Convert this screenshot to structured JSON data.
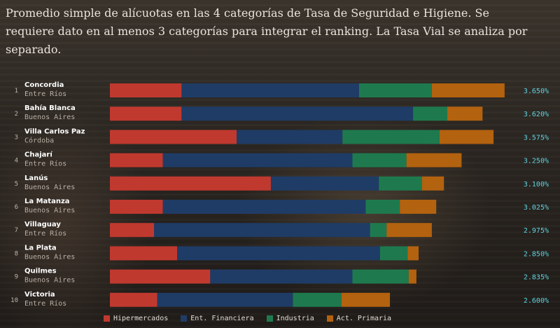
{
  "intro": "Promedio simple de alícuotas en las 4 categorías de Tasa de Seguridad e Higiene. Se requiere dato en al menos 3 categorías para integrar el ranking. La Tasa Vial se analiza por separado.",
  "chart_data": {
    "type": "bar",
    "orientation": "horizontal",
    "stacked": true,
    "categories": [
      {
        "rank": "1",
        "name": "Concordia",
        "province": "Entre Ríos",
        "total_label": "3.650%"
      },
      {
        "rank": "2",
        "name": "Bahía Blanca",
        "province": "Buenos Aires",
        "total_label": "3.620%"
      },
      {
        "rank": "3",
        "name": "Villa Carlos Paz",
        "province": "Córdoba",
        "total_label": "3.575%"
      },
      {
        "rank": "4",
        "name": "Chajarí",
        "province": "Entre Ríos",
        "total_label": "3.250%"
      },
      {
        "rank": "5",
        "name": "Lanús",
        "province": "Buenos Aires",
        "total_label": "3.100%"
      },
      {
        "rank": "6",
        "name": "La Matanza",
        "province": "Buenos Aires",
        "total_label": "3.025%"
      },
      {
        "rank": "7",
        "name": "Villaguay",
        "province": "Entre Ríos",
        "total_label": "2.975%"
      },
      {
        "rank": "8",
        "name": "La Plata",
        "province": "Buenos Aires",
        "total_label": "2.850%"
      },
      {
        "rank": "9",
        "name": "Quilmes",
        "province": "Buenos Aires",
        "total_label": "2.835%"
      },
      {
        "rank": "10",
        "name": "Victoria",
        "province": "Entre Ríos",
        "total_label": "2.600%"
      }
    ],
    "series": [
      {
        "name": "Hipermercados",
        "color": "#c0392f",
        "values": [
          0.65,
          0.65,
          1.15,
          0.48,
          1.46,
          0.48,
          0.4,
          0.61,
          0.91,
          0.43
        ]
      },
      {
        "name": "Ent. Financiera",
        "color": "#1f3c66",
        "values": [
          1.61,
          2.1,
          0.96,
          1.72,
          0.98,
          1.84,
          1.96,
          1.84,
          1.29,
          1.23
        ]
      },
      {
        "name": "Industria",
        "color": "#1e7a4e",
        "values": [
          0.66,
          0.31,
          0.88,
          0.49,
          0.39,
          0.31,
          0.15,
          0.25,
          0.51,
          0.44
        ]
      },
      {
        "name": "Act. Primaria",
        "color": "#b3620f",
        "values": [
          0.66,
          0.32,
          0.49,
          0.5,
          0.2,
          0.33,
          0.41,
          0.1,
          0.07,
          0.44
        ]
      }
    ]
  }
}
